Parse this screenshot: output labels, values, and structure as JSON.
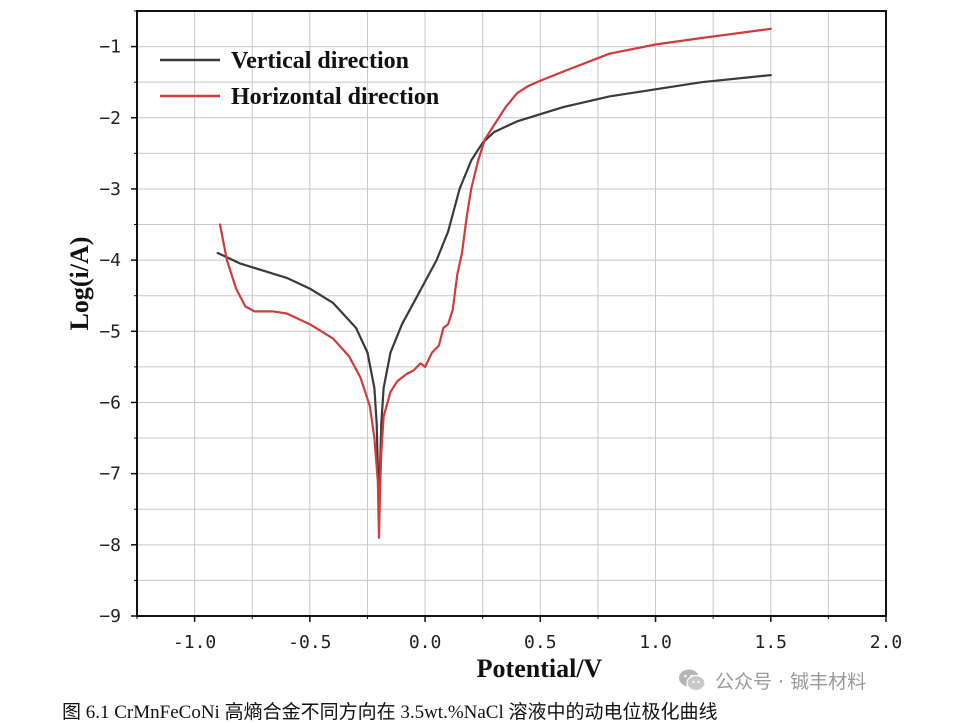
{
  "chart_data": {
    "type": "line",
    "xlabel": "Potential/V",
    "ylabel": "Log(i/A)",
    "xlim": [
      -1.25,
      2.0
    ],
    "ylim": [
      -9,
      -0.5
    ],
    "xticks": [
      -1.0,
      -0.5,
      0.0,
      0.5,
      1.0,
      1.5,
      2.0
    ],
    "xtick_labels": [
      "-1.0",
      "-0.5",
      "0.0",
      "0.5",
      "1.0",
      "1.5",
      "2.0"
    ],
    "yticks": [
      -9,
      -8,
      -7,
      -6,
      -5,
      -4,
      -3,
      -2,
      -1
    ],
    "ytick_labels": [
      "−9",
      "−8",
      "−7",
      "−6",
      "−5",
      "−4",
      "−3",
      "−2",
      "−1"
    ],
    "grid": true,
    "legend_position": "top-left",
    "series": [
      {
        "name": "Vertical direction",
        "color": "#3a3a3a",
        "x": [
          -0.9,
          -0.8,
          -0.7,
          -0.6,
          -0.5,
          -0.4,
          -0.3,
          -0.25,
          -0.22,
          -0.21,
          -0.205,
          -0.2,
          -0.195,
          -0.19,
          -0.18,
          -0.15,
          -0.1,
          -0.05,
          0.0,
          0.05,
          0.1,
          0.15,
          0.2,
          0.25,
          0.3,
          0.4,
          0.5,
          0.6,
          0.8,
          1.0,
          1.2,
          1.5
        ],
        "y": [
          -3.9,
          -4.05,
          -4.15,
          -4.25,
          -4.4,
          -4.6,
          -4.95,
          -5.3,
          -5.8,
          -6.3,
          -6.9,
          -7.6,
          -6.9,
          -6.3,
          -5.8,
          -5.3,
          -4.9,
          -4.6,
          -4.3,
          -4.0,
          -3.6,
          -3.0,
          -2.6,
          -2.35,
          -2.2,
          -2.05,
          -1.95,
          -1.85,
          -1.7,
          -1.6,
          -1.5,
          -1.4
        ]
      },
      {
        "name": "Horizontal direction",
        "color": "#d23b3b",
        "x": [
          -0.89,
          -0.86,
          -0.82,
          -0.78,
          -0.74,
          -0.7,
          -0.66,
          -0.6,
          -0.5,
          -0.4,
          -0.33,
          -0.28,
          -0.24,
          -0.22,
          -0.205,
          -0.2,
          -0.195,
          -0.19,
          -0.18,
          -0.15,
          -0.12,
          -0.08,
          -0.05,
          -0.02,
          0.0,
          0.03,
          0.06,
          0.08,
          0.1,
          0.12,
          0.14,
          0.16,
          0.18,
          0.2,
          0.23,
          0.26,
          0.3,
          0.35,
          0.4,
          0.45,
          0.5,
          0.6,
          0.8,
          1.0,
          1.2,
          1.5
        ],
        "y": [
          -3.5,
          -4.0,
          -4.4,
          -4.65,
          -4.72,
          -4.72,
          -4.72,
          -4.75,
          -4.9,
          -5.1,
          -5.35,
          -5.65,
          -6.05,
          -6.5,
          -7.1,
          -7.9,
          -7.2,
          -6.7,
          -6.2,
          -5.85,
          -5.7,
          -5.6,
          -5.55,
          -5.45,
          -5.5,
          -5.3,
          -5.2,
          -4.95,
          -4.9,
          -4.7,
          -4.2,
          -3.9,
          -3.4,
          -3.0,
          -2.6,
          -2.3,
          -2.1,
          -1.85,
          -1.65,
          -1.55,
          -1.48,
          -1.35,
          -1.1,
          -0.97,
          -0.88,
          -0.75
        ]
      }
    ]
  },
  "caption": "图 6.1 CrMnFeCoNi 高熵合金不同方向在 3.5wt.%NaCl 溶液中的动电位极化曲线",
  "watermark": {
    "text": "公众号 · 铖丰材料",
    "icon": "wechat-icon"
  }
}
